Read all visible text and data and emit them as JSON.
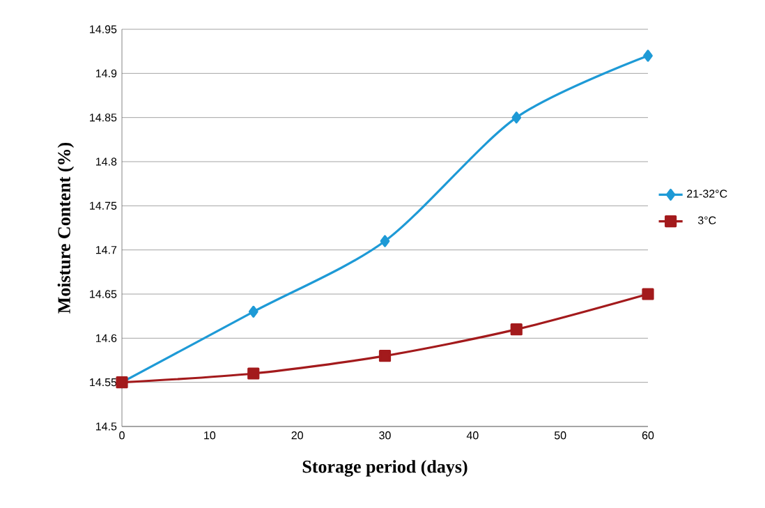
{
  "chart_data": {
    "type": "line",
    "xlabel": "Storage period (days)",
    "ylabel": "Moisture Content (%)",
    "x": [
      0,
      15,
      30,
      45,
      60
    ],
    "series": [
      {
        "name": "21-32°C",
        "color": "#1e9ad6",
        "marker": "diamond",
        "values": [
          14.55,
          14.63,
          14.71,
          14.85,
          14.92
        ]
      },
      {
        "name": "3°C",
        "color": "#a31a1c",
        "marker": "square",
        "values": [
          14.55,
          14.56,
          14.58,
          14.61,
          14.65
        ]
      }
    ],
    "xlim": [
      0,
      60
    ],
    "xticks": [
      0,
      10,
      20,
      30,
      40,
      50,
      60
    ],
    "ylim": [
      14.5,
      14.95
    ],
    "yticks": [
      14.5,
      14.55,
      14.6,
      14.65,
      14.7,
      14.75,
      14.8,
      14.85,
      14.9,
      14.95
    ],
    "grid": "y",
    "legend": "right",
    "line_style": "solid"
  }
}
